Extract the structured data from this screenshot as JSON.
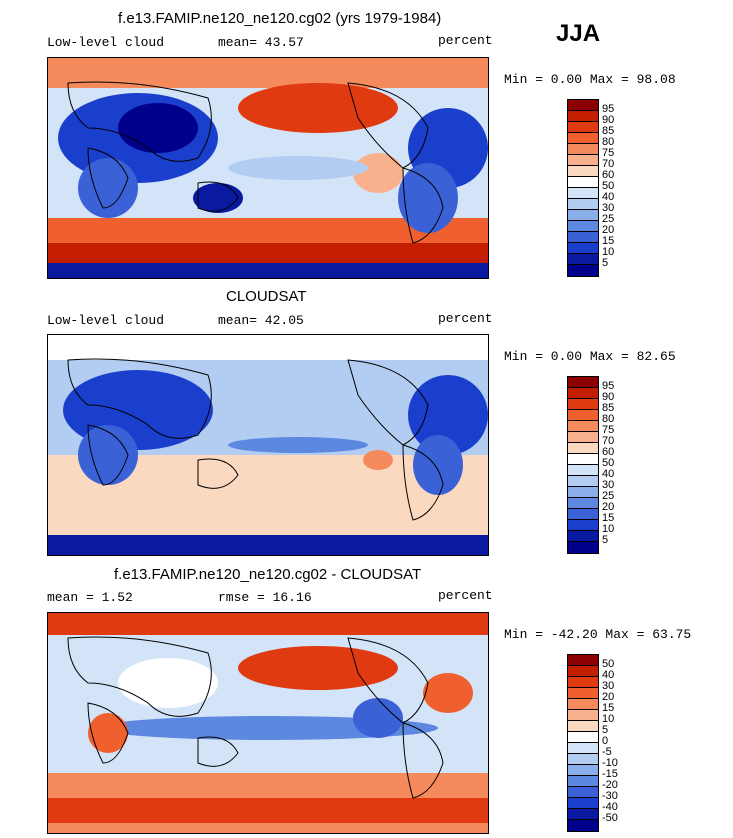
{
  "season": "JJA",
  "panels": [
    {
      "title": "f.e13.FAMIP.ne120_ne120.cg02 (yrs 1979-1984)",
      "left_label": "Low-level cloud",
      "mid_label": "mean=  43.57",
      "right_label": "percent",
      "minmax": "Min =   0.00 Max =  98.08",
      "levels": [
        "95",
        "90",
        "85",
        "80",
        "75",
        "70",
        "60",
        "50",
        "40",
        "30",
        "25",
        "20",
        "15",
        "10",
        "5"
      ],
      "colors": [
        "#8b0000",
        "#c41e00",
        "#e03a10",
        "#f0602e",
        "#f58a5c",
        "#f9b08c",
        "#fbd8c0",
        "#ffffff",
        "#d4e4f8",
        "#b3ccf2",
        "#8aaeea",
        "#5d88e0",
        "#3a62d6",
        "#1a3fcc",
        "#0a1aa0",
        "#00008b"
      ]
    },
    {
      "title": "CLOUDSAT",
      "left_label": "Low-level cloud",
      "mid_label": "mean=  42.05",
      "right_label": "percent",
      "minmax": "Min =   0.00 Max =  82.65",
      "levels": [
        "95",
        "90",
        "85",
        "80",
        "75",
        "70",
        "60",
        "50",
        "40",
        "30",
        "25",
        "20",
        "15",
        "10",
        "5"
      ],
      "colors": [
        "#8b0000",
        "#c41e00",
        "#e03a10",
        "#f0602e",
        "#f58a5c",
        "#f9b08c",
        "#fbd8c0",
        "#ffffff",
        "#d4e4f8",
        "#b3ccf2",
        "#8aaeea",
        "#5d88e0",
        "#3a62d6",
        "#1a3fcc",
        "#0a1aa0",
        "#00008b"
      ]
    },
    {
      "title": "f.e13.FAMIP.ne120_ne120.cg02 - CLOUDSAT",
      "left_label": "mean =   1.52",
      "mid_label": "rmse =  16.16",
      "right_label": "percent",
      "minmax": "Min = -42.20 Max =  63.75",
      "levels": [
        "50",
        "40",
        "30",
        "20",
        "15",
        "10",
        "5",
        "0",
        "-5",
        "-10",
        "-15",
        "-20",
        "-30",
        "-40",
        "-50"
      ],
      "colors": [
        "#8b0000",
        "#c41e00",
        "#e03a10",
        "#f0602e",
        "#f58a5c",
        "#f9b08c",
        "#fbd8c0",
        "#ffffff",
        "#d4e4f8",
        "#b3ccf2",
        "#8aaeea",
        "#5d88e0",
        "#3a62d6",
        "#1a3fcc",
        "#0a1aa0",
        "#00008b"
      ]
    }
  ]
}
